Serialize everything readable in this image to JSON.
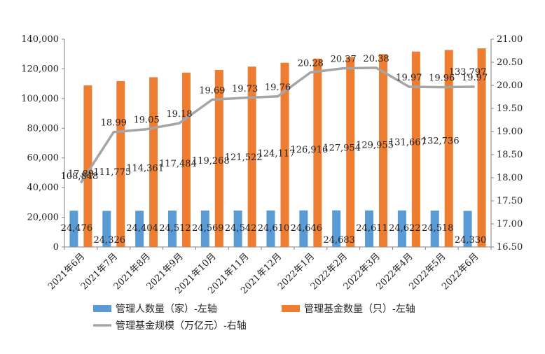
{
  "chart_data": {
    "type": "bar+line",
    "categories": [
      "2021年6月",
      "2021年7月",
      "2021年8月",
      "2021年9月",
      "2021年10月",
      "2021年11月",
      "2021年12月",
      "2022年1月",
      "2022年2月",
      "2022年3月",
      "2022年4月",
      "2022年5月",
      "2022年6月"
    ],
    "series": [
      {
        "name": "管理人数量（家）-左轴",
        "type": "bar",
        "axis": "left",
        "color": "#5B9BD5",
        "values": [
          24476,
          24326,
          24404,
          24512,
          24569,
          24542,
          24610,
          24646,
          24683,
          24611,
          24622,
          24518,
          24330
        ],
        "labels": [
          "24,476",
          "24,326",
          "24,404",
          "24,512",
          "24,569",
          "24,542",
          "24,610",
          "24,646",
          "24,683",
          "24,611",
          "24,622",
          "24,518",
          "24,330"
        ]
      },
      {
        "name": "管理基金数量（只）-左轴",
        "type": "bar",
        "axis": "left",
        "color": "#ED7D31",
        "values": [
          108848,
          111775,
          114361,
          117484,
          119268,
          121522,
          124117,
          126916,
          127954,
          129955,
          131667,
          132736,
          133797
        ],
        "labels": [
          "108,848",
          "111,775",
          "114,361",
          "117,484",
          "119,268",
          "121,522",
          "124,117",
          "126,916",
          "127,954",
          "129,955",
          "131,667",
          "132,736",
          "133,797"
        ]
      },
      {
        "name": "管理基金规模（万亿元）-右轴",
        "type": "line",
        "axis": "right",
        "color": "#A5A5A5",
        "values": [
          17.89,
          18.99,
          19.05,
          19.18,
          19.69,
          19.73,
          19.76,
          20.28,
          20.37,
          20.38,
          19.97,
          19.96,
          19.97
        ],
        "labels": [
          "17.89",
          "18.99",
          "19.05",
          "19.18",
          "19.69",
          "19.73",
          "19.76",
          "20.28",
          "20.37",
          "20.38",
          "19.97",
          "19.96",
          "19.97"
        ]
      }
    ],
    "ylim_left": [
      0,
      140000
    ],
    "yticks_left": [
      "0",
      "20,000",
      "40,000",
      "60,000",
      "80,000",
      "100,000",
      "120,000",
      "140,000"
    ],
    "ylim_right": [
      16.5,
      21.0
    ],
    "yticks_right": [
      "16.50",
      "17.00",
      "17.50",
      "18.00",
      "18.50",
      "19.00",
      "19.50",
      "20.00",
      "20.50",
      "21.00"
    ],
    "grid": false,
    "legend_position": "bottom"
  }
}
